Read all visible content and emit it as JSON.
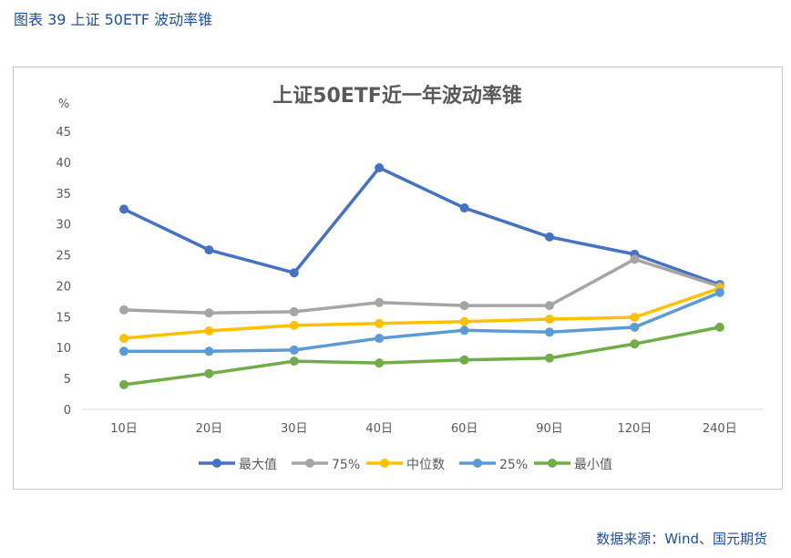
{
  "caption": "图表 39  上证 50ETF 波动率锥",
  "source": "数据来源：Wind、国元期货",
  "chart_data": {
    "type": "line",
    "title": "上证50ETF近一年波动率锥",
    "ylabel": "%",
    "ylim": [
      0,
      45
    ],
    "yticks": [
      0,
      5,
      10,
      15,
      20,
      25,
      30,
      35,
      40,
      45
    ],
    "categories": [
      "10日",
      "20日",
      "30日",
      "40日",
      "60日",
      "90日",
      "120日",
      "240日"
    ],
    "legend_position": "bottom",
    "grid": false,
    "series": [
      {
        "name": "最大值",
        "color": "#4472C4",
        "values": [
          32.4,
          25.8,
          22.1,
          39.1,
          32.6,
          27.9,
          25.1,
          20.2
        ]
      },
      {
        "name": "75%",
        "color": "#A5A5A5",
        "values": [
          16.1,
          15.6,
          15.8,
          17.3,
          16.8,
          16.8,
          24.3,
          19.9
        ]
      },
      {
        "name": "中位数",
        "color": "#FFC000",
        "values": [
          11.5,
          12.7,
          13.6,
          13.9,
          14.2,
          14.6,
          14.9,
          19.6
        ]
      },
      {
        "name": "25%",
        "color": "#5B9BD5",
        "values": [
          9.4,
          9.4,
          9.6,
          11.5,
          12.8,
          12.5,
          13.3,
          18.9
        ]
      },
      {
        "name": "最小值",
        "color": "#70AD47",
        "values": [
          4.0,
          5.8,
          7.8,
          7.5,
          8.0,
          8.3,
          10.6,
          13.3
        ]
      }
    ]
  }
}
